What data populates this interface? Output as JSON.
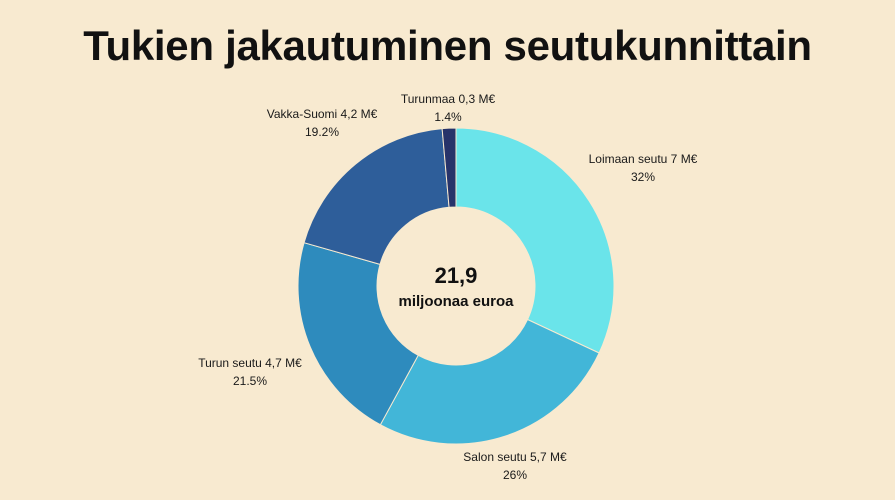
{
  "chart_data": {
    "type": "pie",
    "title": "Tukien jakautuminen seutukunnittain",
    "center_value": "21,9",
    "center_label": "miljoonaa euroa",
    "slices": [
      {
        "label": "Loimaan seutu 7 M€",
        "percent_label": "32%",
        "value": 32,
        "color": "#6ae4ea"
      },
      {
        "label": "Salon seutu 5,7 M€",
        "percent_label": "26%",
        "value": 26,
        "color": "#42b6d8"
      },
      {
        "label": "Turun seutu 4,7 M€",
        "percent_label": "21.5%",
        "value": 21.5,
        "color": "#2e8bbd"
      },
      {
        "label": "Vakka-Suomi 4,2 M€",
        "percent_label": "19.2%",
        "value": 19.2,
        "color": "#2e5e9a"
      },
      {
        "label": "Turunmaa 0,3 M€",
        "percent_label": "1.4%",
        "value": 1.4,
        "color": "#27336a"
      }
    ]
  }
}
